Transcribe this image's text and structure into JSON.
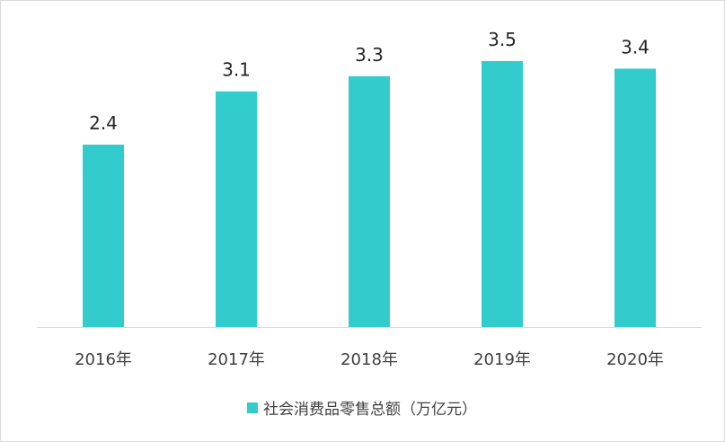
{
  "chart_data": {
    "type": "bar",
    "categories": [
      "2016年",
      "2017年",
      "2018年",
      "2019年",
      "2020年"
    ],
    "series": [
      {
        "name": "社会消费品零售总额（万亿元）",
        "values": [
          2.4,
          3.1,
          3.3,
          3.5,
          3.4
        ]
      }
    ],
    "data_labels": [
      "2.4",
      "3.1",
      "3.3",
      "3.5",
      "3.4"
    ],
    "ylim": [
      0,
      4
    ],
    "grid": false,
    "legend_position": "bottom",
    "colors": {
      "bar": "#33CCCC",
      "axis": "#d9d9d9"
    }
  }
}
